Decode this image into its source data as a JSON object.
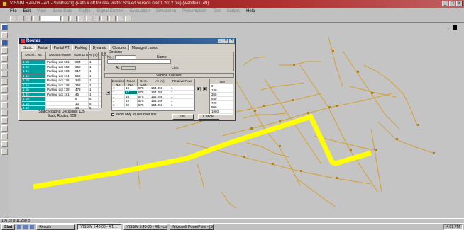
{
  "window": {
    "title": "VISSIM 5.40-06 - 4/1 - Syntheszig (Path # off for real visitor Scaled version 08/01 2012 file) (wahlfelix: 49)"
  },
  "menu": [
    "File",
    "Edit",
    "View",
    "Base Data",
    "Traffic",
    "Signal Control",
    "Evaluation",
    "Simulation",
    "Presentation",
    "Test",
    "Scripts",
    "Help"
  ],
  "dialog": {
    "title": "Routes",
    "tabs": [
      "Static",
      "Partial",
      "Partial PT",
      "Parking",
      "Dynamic",
      "Closures",
      "Managed Lanes"
    ],
    "left_headers": [
      "Decisi... No.",
      "Decision Name",
      "Start Link",
      "At (m)"
    ],
    "decisions": [
      {
        "no": "1 10",
        "name": "Parking Lot 151",
        "link": "604",
        "at": "1"
      },
      {
        "no": "1 20",
        "name": "Parking Lot 153",
        "link": "658",
        "at": "1"
      },
      {
        "no": "1 24",
        "name": "Parking Lot 173",
        "link": "917",
        "at": "1"
      },
      {
        "no": "1 12",
        "name": "Parking Lot 174",
        "link": "560",
        "at": "1"
      },
      {
        "no": "1 18",
        "name": "Parking Lot 176",
        "link": "249",
        "at": "1"
      },
      {
        "no": "1 14",
        "name": "Parking Lot 178",
        "link": "352",
        "at": "1"
      },
      {
        "no": "1 16",
        "name": "Parking Lot 179",
        "link": "473",
        "at": "1"
      },
      {
        "no": "1 22",
        "name": "Parking Lot 181",
        "link": "45",
        "at": "1"
      },
      {
        "no": "1 19",
        "name": "",
        "link": "6",
        "at": "5"
      },
      {
        "no": "1 15",
        "name": "",
        "link": "13",
        "at": "5"
      },
      {
        "no": "1 13",
        "name": "",
        "link": "13",
        "at": "5"
      }
    ],
    "summary_decisions": "Static Routing Decisions: 125",
    "summary_routes": "Static Routes: 959",
    "decision_group": {
      "label": "Decision",
      "no_label": "No.:",
      "name_label": "Name:",
      "at_label": "At:",
      "link_label": "Link:"
    },
    "vehicle_classes": "Vehicle Classes:",
    "route_headers": [
      "Decision No.",
      "Route No.",
      "Dest. Link",
      "At (m)",
      "Relative Flow"
    ],
    "routes": [
      {
        "dec": "1",
        "route": "16",
        "link": "575",
        "at": "164.056",
        "flow": "1"
      },
      {
        "dec": "1",
        "route": "17",
        "link": "575",
        "at": "164.056",
        "flow": "1"
      },
      {
        "dec": "1",
        "route": "18",
        "link": "575",
        "at": "164.056",
        "flow": "1"
      },
      {
        "dec": "1",
        "route": "19",
        "link": "575",
        "at": "164.056",
        "flow": "1"
      },
      {
        "dec": "1",
        "route": "20",
        "link": "575",
        "at": "164.056",
        "flow": "1"
      }
    ],
    "time_header": "Time",
    "times": [
      "0",
      "180",
      "360",
      "540",
      "720",
      "900",
      "1080"
    ],
    "show_only_label": "show only routes over link",
    "ok_label": "OK",
    "cancel_label": "Cancel"
  },
  "status": {
    "coords": "106.02 9 11,268 8"
  },
  "taskbar": {
    "start": "Start",
    "tasks": [
      {
        "label": "Results",
        "pressed": false
      },
      {
        "label": "VISSIM 5.40-06 - 4/1 ...",
        "pressed": true
      },
      {
        "label": "VISSIM 5.40-06 - 4/1 - ca...",
        "pressed": false
      },
      {
        "label": "Microsoft PowerPoint - [S...",
        "pressed": false
      }
    ],
    "clock": "4:09 PM"
  },
  "colors": {
    "route_highlight": "#ffff00",
    "network_link": "#d4a030",
    "decision_cell": "#00a0a0",
    "title_bar": "#7a1010"
  }
}
